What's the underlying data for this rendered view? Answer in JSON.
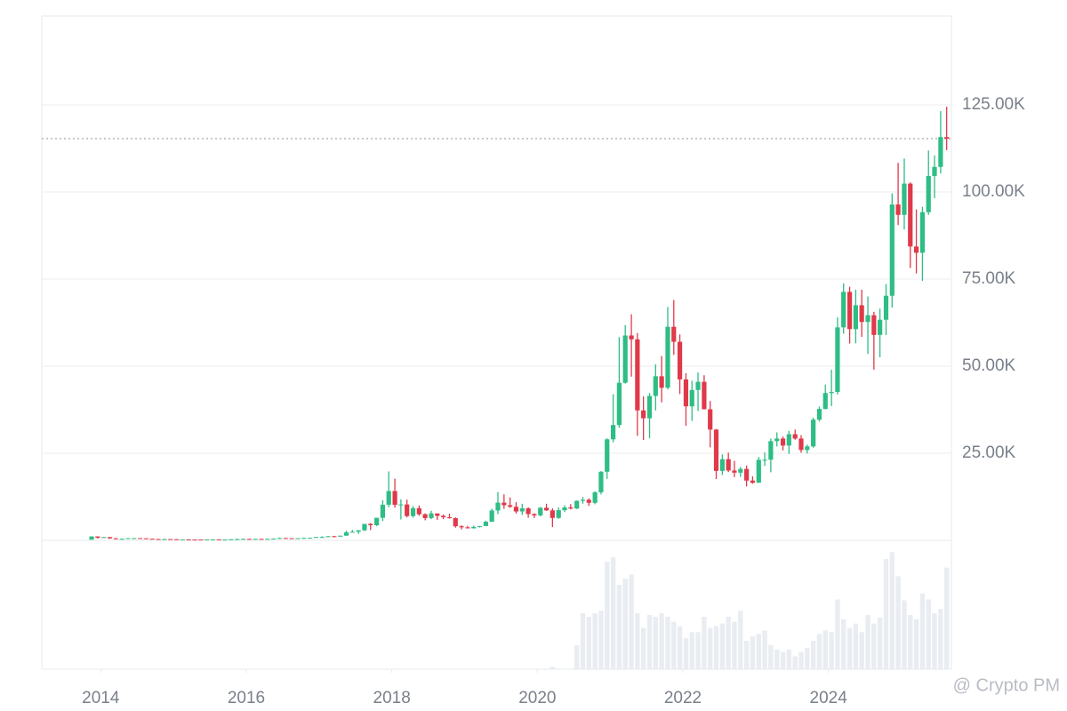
{
  "chart_data": {
    "type": "candlestick",
    "up_color": "#2ebd85",
    "down_color": "#e0394a",
    "volume_color": "#e9edf2",
    "grid": true,
    "watermark": "@ Crypto PM",
    "xlim": [
      2013.19,
      2025.69
    ],
    "xticks": [
      2014,
      2016,
      2018,
      2020,
      2022,
      2024
    ],
    "ylim": [
      0,
      150000
    ],
    "yticks": [
      {
        "value": 25000,
        "label": "25.00K"
      },
      {
        "value": 50000,
        "label": "50.00K"
      },
      {
        "value": 75000,
        "label": "75.00K"
      },
      {
        "value": 100000,
        "label": "100.00K"
      },
      {
        "value": 125000,
        "label": "125.00K"
      }
    ],
    "x": [
      2013.875,
      2013.958,
      2014.042,
      2014.125,
      2014.208,
      2014.292,
      2014.375,
      2014.458,
      2014.542,
      2014.625,
      2014.708,
      2014.792,
      2014.875,
      2014.958,
      2015.042,
      2015.125,
      2015.208,
      2015.292,
      2015.375,
      2015.458,
      2015.542,
      2015.625,
      2015.708,
      2015.792,
      2015.875,
      2015.958,
      2016.042,
      2016.125,
      2016.208,
      2016.292,
      2016.375,
      2016.458,
      2016.542,
      2016.625,
      2016.708,
      2016.792,
      2016.875,
      2016.958,
      2017.042,
      2017.125,
      2017.208,
      2017.292,
      2017.375,
      2017.458,
      2017.542,
      2017.625,
      2017.708,
      2017.792,
      2017.875,
      2017.958,
      2018.042,
      2018.125,
      2018.208,
      2018.292,
      2018.375,
      2018.458,
      2018.542,
      2018.625,
      2018.708,
      2018.792,
      2018.875,
      2018.958,
      2019.042,
      2019.125,
      2019.208,
      2019.292,
      2019.375,
      2019.458,
      2019.542,
      2019.625,
      2019.708,
      2019.792,
      2019.875,
      2019.958,
      2020.042,
      2020.125,
      2020.208,
      2020.292,
      2020.375,
      2020.458,
      2020.542,
      2020.625,
      2020.708,
      2020.792,
      2020.875,
      2020.958,
      2021.042,
      2021.125,
      2021.208,
      2021.292,
      2021.375,
      2021.458,
      2021.542,
      2021.625,
      2021.708,
      2021.792,
      2021.875,
      2021.958,
      2022.042,
      2022.125,
      2022.208,
      2022.292,
      2022.375,
      2022.458,
      2022.542,
      2022.625,
      2022.708,
      2022.792,
      2022.875,
      2022.958,
      2023.042,
      2023.125,
      2023.208,
      2023.292,
      2023.375,
      2023.458,
      2023.542,
      2023.625,
      2023.708,
      2023.792,
      2023.875,
      2023.958,
      2024.042,
      2024.125,
      2024.208,
      2024.292,
      2024.375,
      2024.458,
      2024.542,
      2024.625,
      2024.708,
      2024.792,
      2024.875,
      2024.958,
      2025.042,
      2025.125,
      2025.208,
      2025.292,
      2025.375,
      2025.458,
      2025.542,
      2025.625
    ],
    "ohlc": [
      [
        206,
        1150,
        200,
        1130
      ],
      [
        1130,
        1150,
        520,
        750
      ],
      [
        750,
        1000,
        750,
        930
      ],
      [
        930,
        940,
        430,
        570
      ],
      [
        570,
        720,
        450,
        450
      ],
      [
        450,
        550,
        340,
        450
      ],
      [
        450,
        630,
        440,
        630
      ],
      [
        630,
        680,
        550,
        640
      ],
      [
        640,
        650,
        570,
        590
      ],
      [
        590,
        600,
        450,
        480
      ],
      [
        480,
        500,
        380,
        390
      ],
      [
        390,
        410,
        290,
        340
      ],
      [
        340,
        460,
        320,
        380
      ],
      [
        380,
        390,
        310,
        320
      ],
      [
        320,
        320,
        170,
        220
      ],
      [
        220,
        270,
        210,
        255
      ],
      [
        255,
        300,
        240,
        245
      ],
      [
        245,
        260,
        215,
        235
      ],
      [
        235,
        250,
        225,
        230
      ],
      [
        230,
        270,
        220,
        265
      ],
      [
        265,
        315,
        260,
        285
      ],
      [
        285,
        285,
        200,
        230
      ],
      [
        230,
        245,
        225,
        236
      ],
      [
        236,
        335,
        236,
        314
      ],
      [
        314,
        500,
        300,
        378
      ],
      [
        378,
        465,
        350,
        430
      ],
      [
        430,
        460,
        350,
        370
      ],
      [
        370,
        440,
        370,
        437
      ],
      [
        437,
        440,
        395,
        416
      ],
      [
        416,
        465,
        410,
        448
      ],
      [
        448,
        550,
        440,
        530
      ],
      [
        530,
        780,
        530,
        670
      ],
      [
        670,
        700,
        600,
        624
      ],
      [
        624,
        625,
        480,
        575
      ],
      [
        575,
        630,
        570,
        610
      ],
      [
        610,
        740,
        600,
        700
      ],
      [
        700,
        760,
        680,
        745
      ],
      [
        745,
        980,
        740,
        965
      ],
      [
        965,
        1160,
        750,
        965
      ],
      [
        965,
        1210,
        920,
        1190
      ],
      [
        1190,
        1300,
        890,
        1080
      ],
      [
        1080,
        1360,
        1070,
        1350
      ],
      [
        1350,
        2790,
        1350,
        2300
      ],
      [
        2300,
        3000,
        2300,
        2480
      ],
      [
        2480,
        2950,
        1830,
        2875
      ],
      [
        2875,
        4760,
        2690,
        4700
      ],
      [
        4700,
        5000,
        2950,
        4340
      ],
      [
        4340,
        6480,
        4110,
        6470
      ],
      [
        6470,
        11500,
        5500,
        10230
      ],
      [
        10230,
        19800,
        9500,
        14160
      ],
      [
        14160,
        17700,
        9400,
        10220
      ],
      [
        10220,
        11800,
        6000,
        10300
      ],
      [
        10300,
        11700,
        6600,
        6970
      ],
      [
        6970,
        9800,
        6500,
        9240
      ],
      [
        9240,
        9990,
        7060,
        7490
      ],
      [
        7490,
        7760,
        5750,
        6400
      ],
      [
        6400,
        8490,
        6100,
        7730
      ],
      [
        7730,
        7750,
        5880,
        7030
      ],
      [
        7030,
        7410,
        6100,
        6630
      ],
      [
        6630,
        7680,
        6200,
        6370
      ],
      [
        6370,
        6600,
        3650,
        4040
      ],
      [
        4040,
        4310,
        3160,
        3740
      ],
      [
        3740,
        4140,
        3400,
        3460
      ],
      [
        3460,
        4200,
        3390,
        3850
      ],
      [
        3850,
        4130,
        3690,
        4110
      ],
      [
        4110,
        5640,
        4080,
        5350
      ],
      [
        5350,
        9100,
        5330,
        8570
      ],
      [
        8570,
        13880,
        7510,
        10820
      ],
      [
        10820,
        13200,
        9050,
        10090
      ],
      [
        10090,
        12330,
        9350,
        9630
      ],
      [
        9630,
        10950,
        7710,
        8290
      ],
      [
        8290,
        10500,
        7300,
        9200
      ],
      [
        9200,
        9500,
        6500,
        7570
      ],
      [
        7570,
        7750,
        6430,
        7190
      ],
      [
        7190,
        9580,
        6870,
        9350
      ],
      [
        9350,
        10500,
        8450,
        8600
      ],
      [
        8600,
        9200,
        3800,
        6440
      ],
      [
        6440,
        9470,
        6160,
        8660
      ],
      [
        8660,
        10080,
        8120,
        9460
      ],
      [
        9460,
        10400,
        8900,
        9140
      ],
      [
        9140,
        11450,
        8990,
        11350
      ],
      [
        11350,
        12480,
        10520,
        11650
      ],
      [
        11650,
        12070,
        9880,
        10780
      ],
      [
        10780,
        14100,
        10370,
        13800
      ],
      [
        13800,
        19860,
        13200,
        19700
      ],
      [
        19700,
        29300,
        17650,
        29000
      ],
      [
        29000,
        41950,
        28130,
        33100
      ],
      [
        33100,
        58350,
        32300,
        45240
      ],
      [
        45240,
        61780,
        45000,
        58800
      ],
      [
        58800,
        64900,
        47000,
        57700
      ],
      [
        57700,
        59500,
        30000,
        37300
      ],
      [
        37300,
        41300,
        28800,
        35040
      ],
      [
        35040,
        42300,
        29300,
        41460
      ],
      [
        41460,
        50500,
        37300,
        47100
      ],
      [
        47100,
        52900,
        39600,
        43800
      ],
      [
        43800,
        67000,
        43300,
        61300
      ],
      [
        61300,
        69000,
        53250,
        57000
      ],
      [
        57000,
        59100,
        42000,
        46200
      ],
      [
        46200,
        47990,
        32900,
        38470
      ],
      [
        38470,
        45800,
        34300,
        43160
      ],
      [
        43160,
        48200,
        37150,
        45510
      ],
      [
        45510,
        47400,
        37600,
        37630
      ],
      [
        37630,
        40000,
        26700,
        31800
      ],
      [
        31800,
        31990,
        17600,
        19940
      ],
      [
        19940,
        24670,
        18780,
        23300
      ],
      [
        23300,
        25200,
        19600,
        20050
      ],
      [
        20050,
        22800,
        18150,
        19430
      ],
      [
        19430,
        21100,
        18200,
        20500
      ],
      [
        20500,
        21480,
        15480,
        17160
      ],
      [
        17160,
        18400,
        16250,
        16540
      ],
      [
        16540,
        23950,
        16500,
        23120
      ],
      [
        23120,
        25250,
        21350,
        23150
      ],
      [
        23150,
        29200,
        19550,
        28480
      ],
      [
        28480,
        31000,
        26950,
        29230
      ],
      [
        29230,
        29820,
        25810,
        27210
      ],
      [
        27210,
        31430,
        24800,
        30470
      ],
      [
        30470,
        31800,
        28860,
        29230
      ],
      [
        29230,
        30200,
        25160,
        25940
      ],
      [
        25940,
        27500,
        24900,
        26970
      ],
      [
        26970,
        35200,
        26560,
        34640
      ],
      [
        34640,
        38430,
        34100,
        37720
      ],
      [
        37720,
        44700,
        37600,
        42280
      ],
      [
        42280,
        48970,
        38550,
        42580
      ],
      [
        42580,
        64000,
        41880,
        61130
      ],
      [
        61130,
        73780,
        59300,
        71330
      ],
      [
        71330,
        72800,
        56500,
        60640
      ],
      [
        60640,
        71950,
        56550,
        67490
      ],
      [
        67490,
        71950,
        58400,
        62680
      ],
      [
        62680,
        70000,
        53500,
        64630
      ],
      [
        64630,
        65600,
        49000,
        58970
      ],
      [
        58970,
        66500,
        52550,
        63330
      ],
      [
        63330,
        73600,
        58900,
        70220
      ],
      [
        70220,
        99600,
        66800,
        96400
      ],
      [
        96400,
        108350,
        90500,
        93430
      ],
      [
        93430,
        109600,
        89200,
        102400
      ],
      [
        102400,
        102750,
        78200,
        84350
      ],
      [
        84350,
        95000,
        76600,
        82550
      ],
      [
        82550,
        95750,
        74500,
        94200
      ],
      [
        94200,
        111900,
        93400,
        104600
      ],
      [
        104600,
        110500,
        98200,
        107200
      ],
      [
        107200,
        123200,
        105300,
        115760
      ],
      [
        115760,
        124450,
        112000,
        115300
      ]
    ],
    "volume": [
      0,
      0,
      0,
      0,
      0,
      0,
      0,
      0,
      0,
      0,
      0,
      0,
      0,
      0,
      0,
      0,
      0,
      0,
      0,
      0,
      0,
      0,
      0,
      0,
      0,
      0,
      0,
      0,
      0,
      0,
      0,
      0,
      0,
      0,
      0,
      0,
      0,
      0,
      0,
      0,
      0,
      0,
      0,
      0,
      0,
      0,
      0,
      0,
      0,
      0,
      0,
      0,
      0,
      0,
      0,
      0,
      0,
      0,
      0,
      0,
      0,
      0,
      0,
      0,
      0,
      0,
      0,
      0,
      0,
      0,
      0,
      0,
      0,
      0,
      0,
      0,
      3,
      0,
      0,
      0,
      28,
      65,
      61,
      65,
      68,
      125,
      130,
      98,
      105,
      110,
      65,
      48,
      63,
      61,
      65,
      61,
      55,
      50,
      36,
      43,
      43,
      61,
      48,
      50,
      53,
      61,
      55,
      68,
      33,
      38,
      41,
      45,
      28,
      23,
      20,
      23,
      15,
      20,
      25,
      33,
      41,
      45,
      43,
      81,
      58,
      48,
      53,
      43,
      63,
      53,
      60,
      128,
      136,
      108,
      80,
      63,
      58,
      88,
      81,
      65,
      70,
      118
    ]
  }
}
